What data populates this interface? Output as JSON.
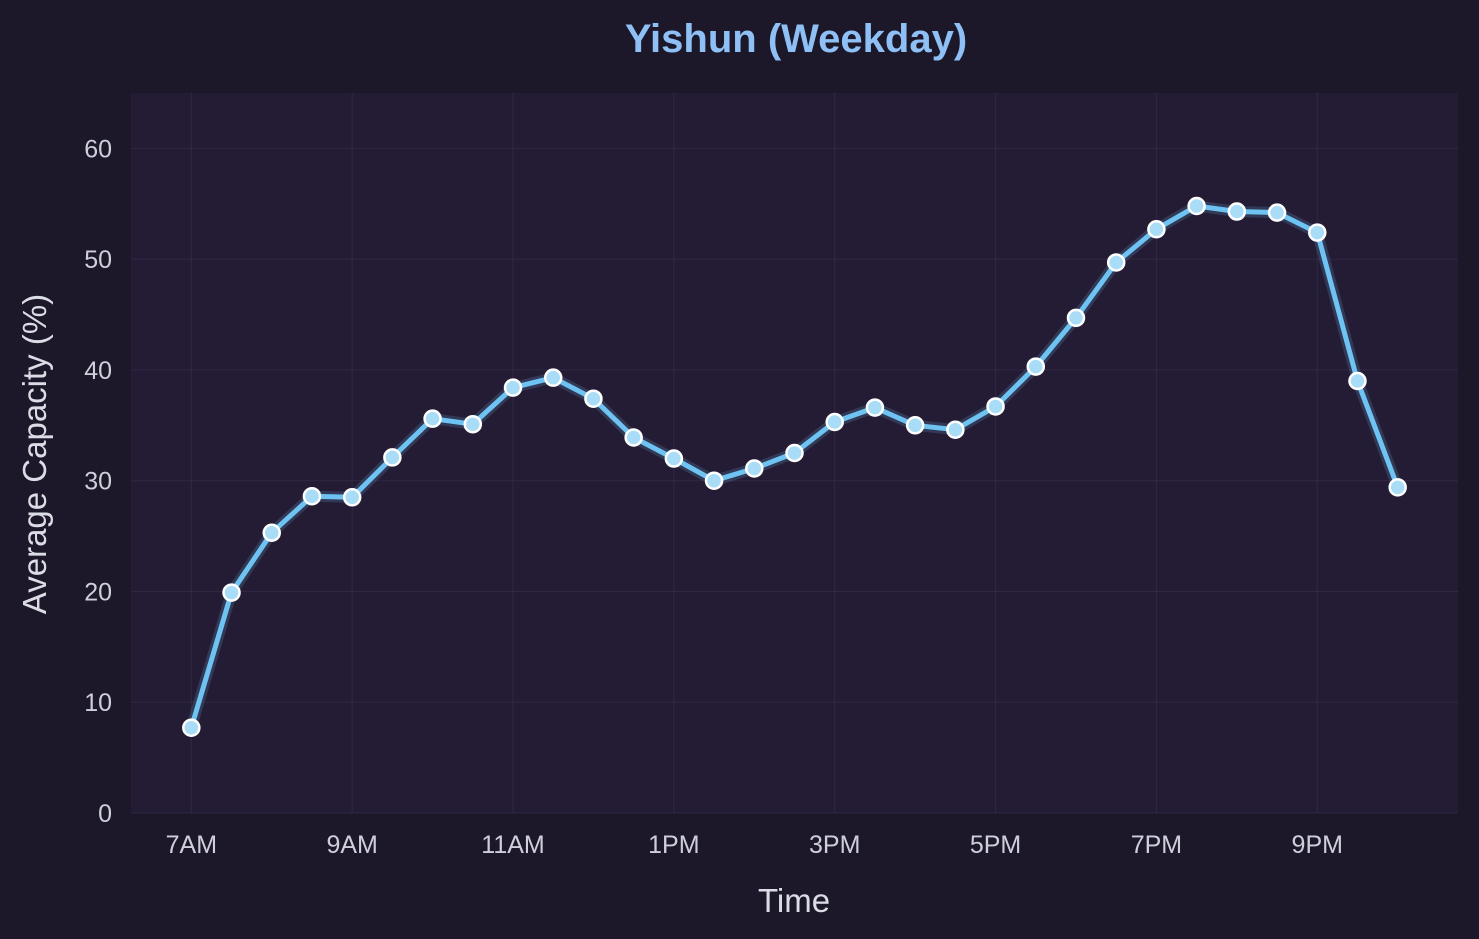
{
  "chart_data": {
    "type": "line",
    "title": "Yishun (Weekday)",
    "xlabel": "Time",
    "ylabel": "Average Capacity (%)",
    "x_tick_labels": [
      "7AM",
      "9AM",
      "11AM",
      "1PM",
      "3PM",
      "5PM",
      "7PM",
      "9PM"
    ],
    "x_tick_hours": [
      7,
      9,
      11,
      13,
      15,
      17,
      19,
      21
    ],
    "y_ticks": [
      0,
      10,
      20,
      30,
      40,
      50,
      60
    ],
    "xlim_hours": [
      6.25,
      22.75
    ],
    "ylim": [
      0,
      65
    ],
    "grid": true,
    "series": [
      {
        "color": "#6ec3f2",
        "marker_color": "#a8dcf7",
        "x_hours": [
          7,
          7.5,
          8,
          8.5,
          9,
          9.5,
          10,
          10.5,
          11,
          11.5,
          12,
          12.5,
          13,
          13.5,
          14,
          14.5,
          15,
          15.5,
          16,
          16.5,
          17,
          17.5,
          18,
          18.5,
          19,
          19.5,
          20,
          20.5,
          21,
          21.5,
          22
        ],
        "values": [
          7.7,
          19.9,
          25.3,
          28.6,
          28.5,
          32.1,
          35.6,
          35.1,
          38.4,
          39.3,
          37.4,
          33.9,
          32.0,
          30.0,
          31.1,
          32.5,
          35.3,
          36.6,
          35.0,
          34.6,
          36.7,
          40.3,
          44.7,
          49.7,
          52.7,
          54.8,
          54.3,
          54.2,
          52.4,
          39.0,
          29.4
        ]
      }
    ]
  }
}
